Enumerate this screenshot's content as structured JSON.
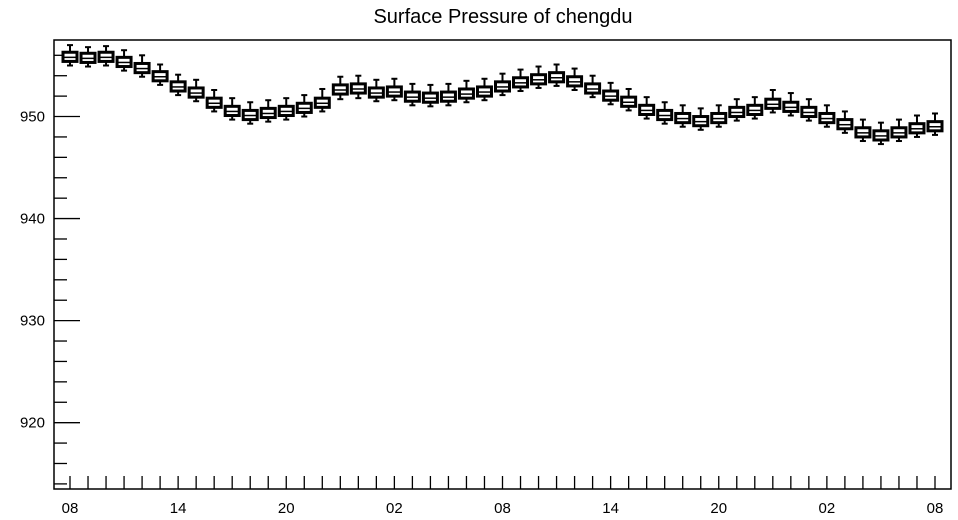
{
  "chart_data": {
    "type": "box",
    "title": "Surface Pressure of chengdu",
    "xlabel": "",
    "ylabel": "",
    "ylim": [
      913.5,
      957.5
    ],
    "yticks": [
      920,
      930,
      940,
      950
    ],
    "y_tick_labels": [
      "920",
      "930",
      "940",
      "950"
    ],
    "x_tick_labels": [
      "08",
      "14",
      "20",
      "02",
      "08",
      "14",
      "20",
      "02",
      "08"
    ],
    "grid": false,
    "legend": "none",
    "colors": {
      "box_fill": "#ffffff",
      "stroke": "#000000",
      "background": "#ffffff"
    },
    "series": [
      {
        "values": [
          955.8,
          955.7,
          955.8,
          955.3,
          954.7,
          953.9,
          952.9,
          952.3,
          951.3,
          950.5,
          950.1,
          950.3,
          950.5,
          950.8,
          951.3,
          952.6,
          952.7,
          952.3,
          952.4,
          951.9,
          951.8,
          951.9,
          952.2,
          952.4,
          952.9,
          953.3,
          953.6,
          953.8,
          953.4,
          952.7,
          952.0,
          951.4,
          950.6,
          950.1,
          949.8,
          949.5,
          949.8,
          950.4,
          950.6,
          951.2,
          950.9,
          950.4,
          949.8,
          949.2,
          948.4,
          948.1,
          948.4,
          948.8,
          949.0
        ],
        "q1": [
          955.4,
          955.3,
          955.4,
          954.9,
          954.3,
          953.5,
          952.5,
          951.9,
          950.9,
          950.1,
          949.7,
          949.9,
          950.1,
          950.4,
          950.9,
          952.2,
          952.3,
          951.9,
          952.0,
          951.5,
          951.4,
          951.5,
          951.8,
          952.0,
          952.5,
          952.9,
          953.2,
          953.4,
          953.0,
          952.3,
          951.6,
          951.0,
          950.2,
          949.7,
          949.4,
          949.1,
          949.4,
          950.0,
          950.2,
          950.8,
          950.5,
          950.0,
          949.4,
          948.8,
          948.0,
          947.7,
          948.0,
          948.4,
          948.6
        ],
        "q3": [
          956.3,
          956.2,
          956.3,
          955.8,
          955.2,
          954.4,
          953.4,
          952.8,
          951.8,
          951.0,
          950.6,
          950.8,
          951.0,
          951.3,
          951.8,
          953.1,
          953.2,
          952.8,
          952.9,
          952.4,
          952.3,
          952.4,
          952.7,
          952.9,
          953.4,
          953.8,
          954.1,
          954.3,
          953.9,
          953.2,
          952.5,
          951.9,
          951.1,
          950.6,
          950.3,
          950.0,
          950.3,
          950.9,
          951.1,
          951.7,
          951.4,
          950.9,
          950.3,
          949.7,
          948.9,
          948.6,
          948.9,
          949.3,
          949.5
        ],
        "low": [
          955.0,
          954.9,
          955.0,
          954.5,
          953.9,
          953.1,
          952.1,
          951.5,
          950.5,
          949.7,
          949.3,
          949.5,
          949.7,
          950.0,
          950.5,
          951.7,
          951.8,
          951.5,
          951.6,
          951.1,
          951.0,
          951.1,
          951.4,
          951.6,
          952.1,
          952.5,
          952.8,
          953.0,
          952.6,
          951.9,
          951.2,
          950.6,
          949.8,
          949.3,
          949.0,
          948.7,
          949.0,
          949.6,
          949.8,
          950.4,
          950.1,
          949.6,
          949.0,
          948.4,
          947.6,
          947.3,
          947.6,
          948.0,
          948.2
        ],
        "high": [
          957.0,
          956.8,
          956.9,
          956.5,
          956.0,
          955.1,
          954.1,
          953.6,
          952.6,
          951.8,
          951.4,
          951.6,
          951.8,
          952.1,
          952.7,
          953.9,
          954.0,
          953.6,
          953.7,
          953.2,
          953.1,
          953.2,
          953.5,
          953.7,
          954.2,
          954.6,
          954.9,
          955.1,
          954.7,
          954.0,
          953.3,
          952.7,
          951.9,
          951.4,
          951.1,
          950.8,
          951.1,
          951.7,
          951.9,
          952.6,
          952.3,
          951.7,
          951.1,
          950.5,
          949.7,
          949.4,
          949.7,
          950.1,
          950.3
        ]
      }
    ]
  }
}
